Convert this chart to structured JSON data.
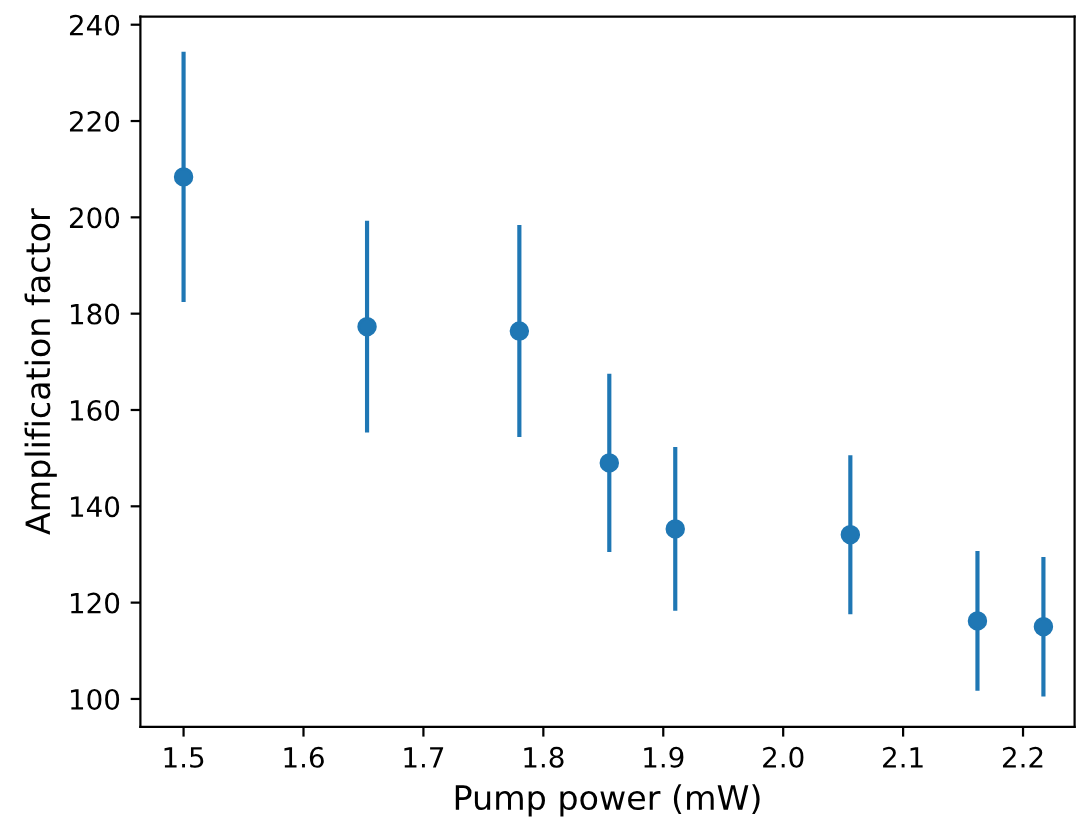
{
  "chart_data": {
    "type": "scatter",
    "xlabel": "Pump power (mW)",
    "ylabel": "Amplification factor",
    "x": [
      1.5,
      1.653,
      1.78,
      1.855,
      1.91,
      2.056,
      2.162,
      2.217
    ],
    "series": [
      {
        "color": "#1f77b4",
        "values": [
          208.4,
          177.3,
          176.4,
          149.0,
          135.3,
          134.1,
          116.2,
          115.0
        ],
        "errors": [
          26,
          22,
          22,
          18.5,
          17,
          16.5,
          14.5,
          14.5
        ]
      }
    ],
    "marker": "circle",
    "xlim": [
      1.464,
      2.243
    ],
    "ylim": [
      94.2,
      241.7
    ],
    "xticks": [
      1.5,
      1.6,
      1.7,
      1.8,
      1.9,
      {
        "value": 2,
        "label": "2.0"
      },
      2.1,
      2.2
    ],
    "yticks": [
      100,
      120,
      140,
      160,
      180,
      200,
      220,
      240
    ],
    "grid": false
  }
}
